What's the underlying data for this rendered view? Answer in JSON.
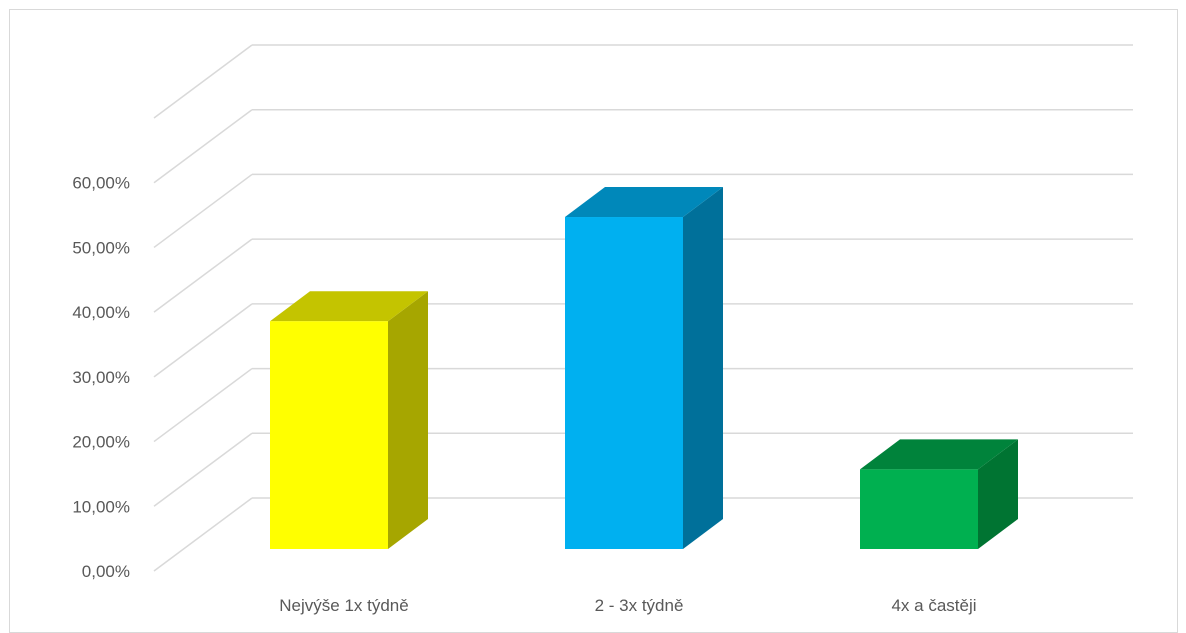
{
  "chart_data": {
    "type": "bar",
    "categories": [
      "Nejvýše 1x týdně",
      "2 - 3x týdně",
      "4x a častěji"
    ],
    "series": [
      {
        "values": [
          35.2,
          51.3,
          12.3
        ]
      }
    ],
    "y_ticks": [
      "0,00%",
      "10,00%",
      "20,00%",
      "30,00%",
      "40,00%",
      "50,00%",
      "60,00%"
    ],
    "ylim": [
      0,
      70
    ],
    "grid": true,
    "style": "3d-column",
    "colors": {
      "bars": [
        {
          "front": "#ffff00",
          "side": "#a6a600",
          "top": "#c4c400"
        },
        {
          "front": "#00b0f0",
          "side": "#00709a",
          "top": "#0088ba"
        },
        {
          "front": "#00b050",
          "side": "#007432",
          "top": "#00833b"
        }
      ],
      "grid": "#d9d9d9",
      "text": "#595959"
    }
  }
}
